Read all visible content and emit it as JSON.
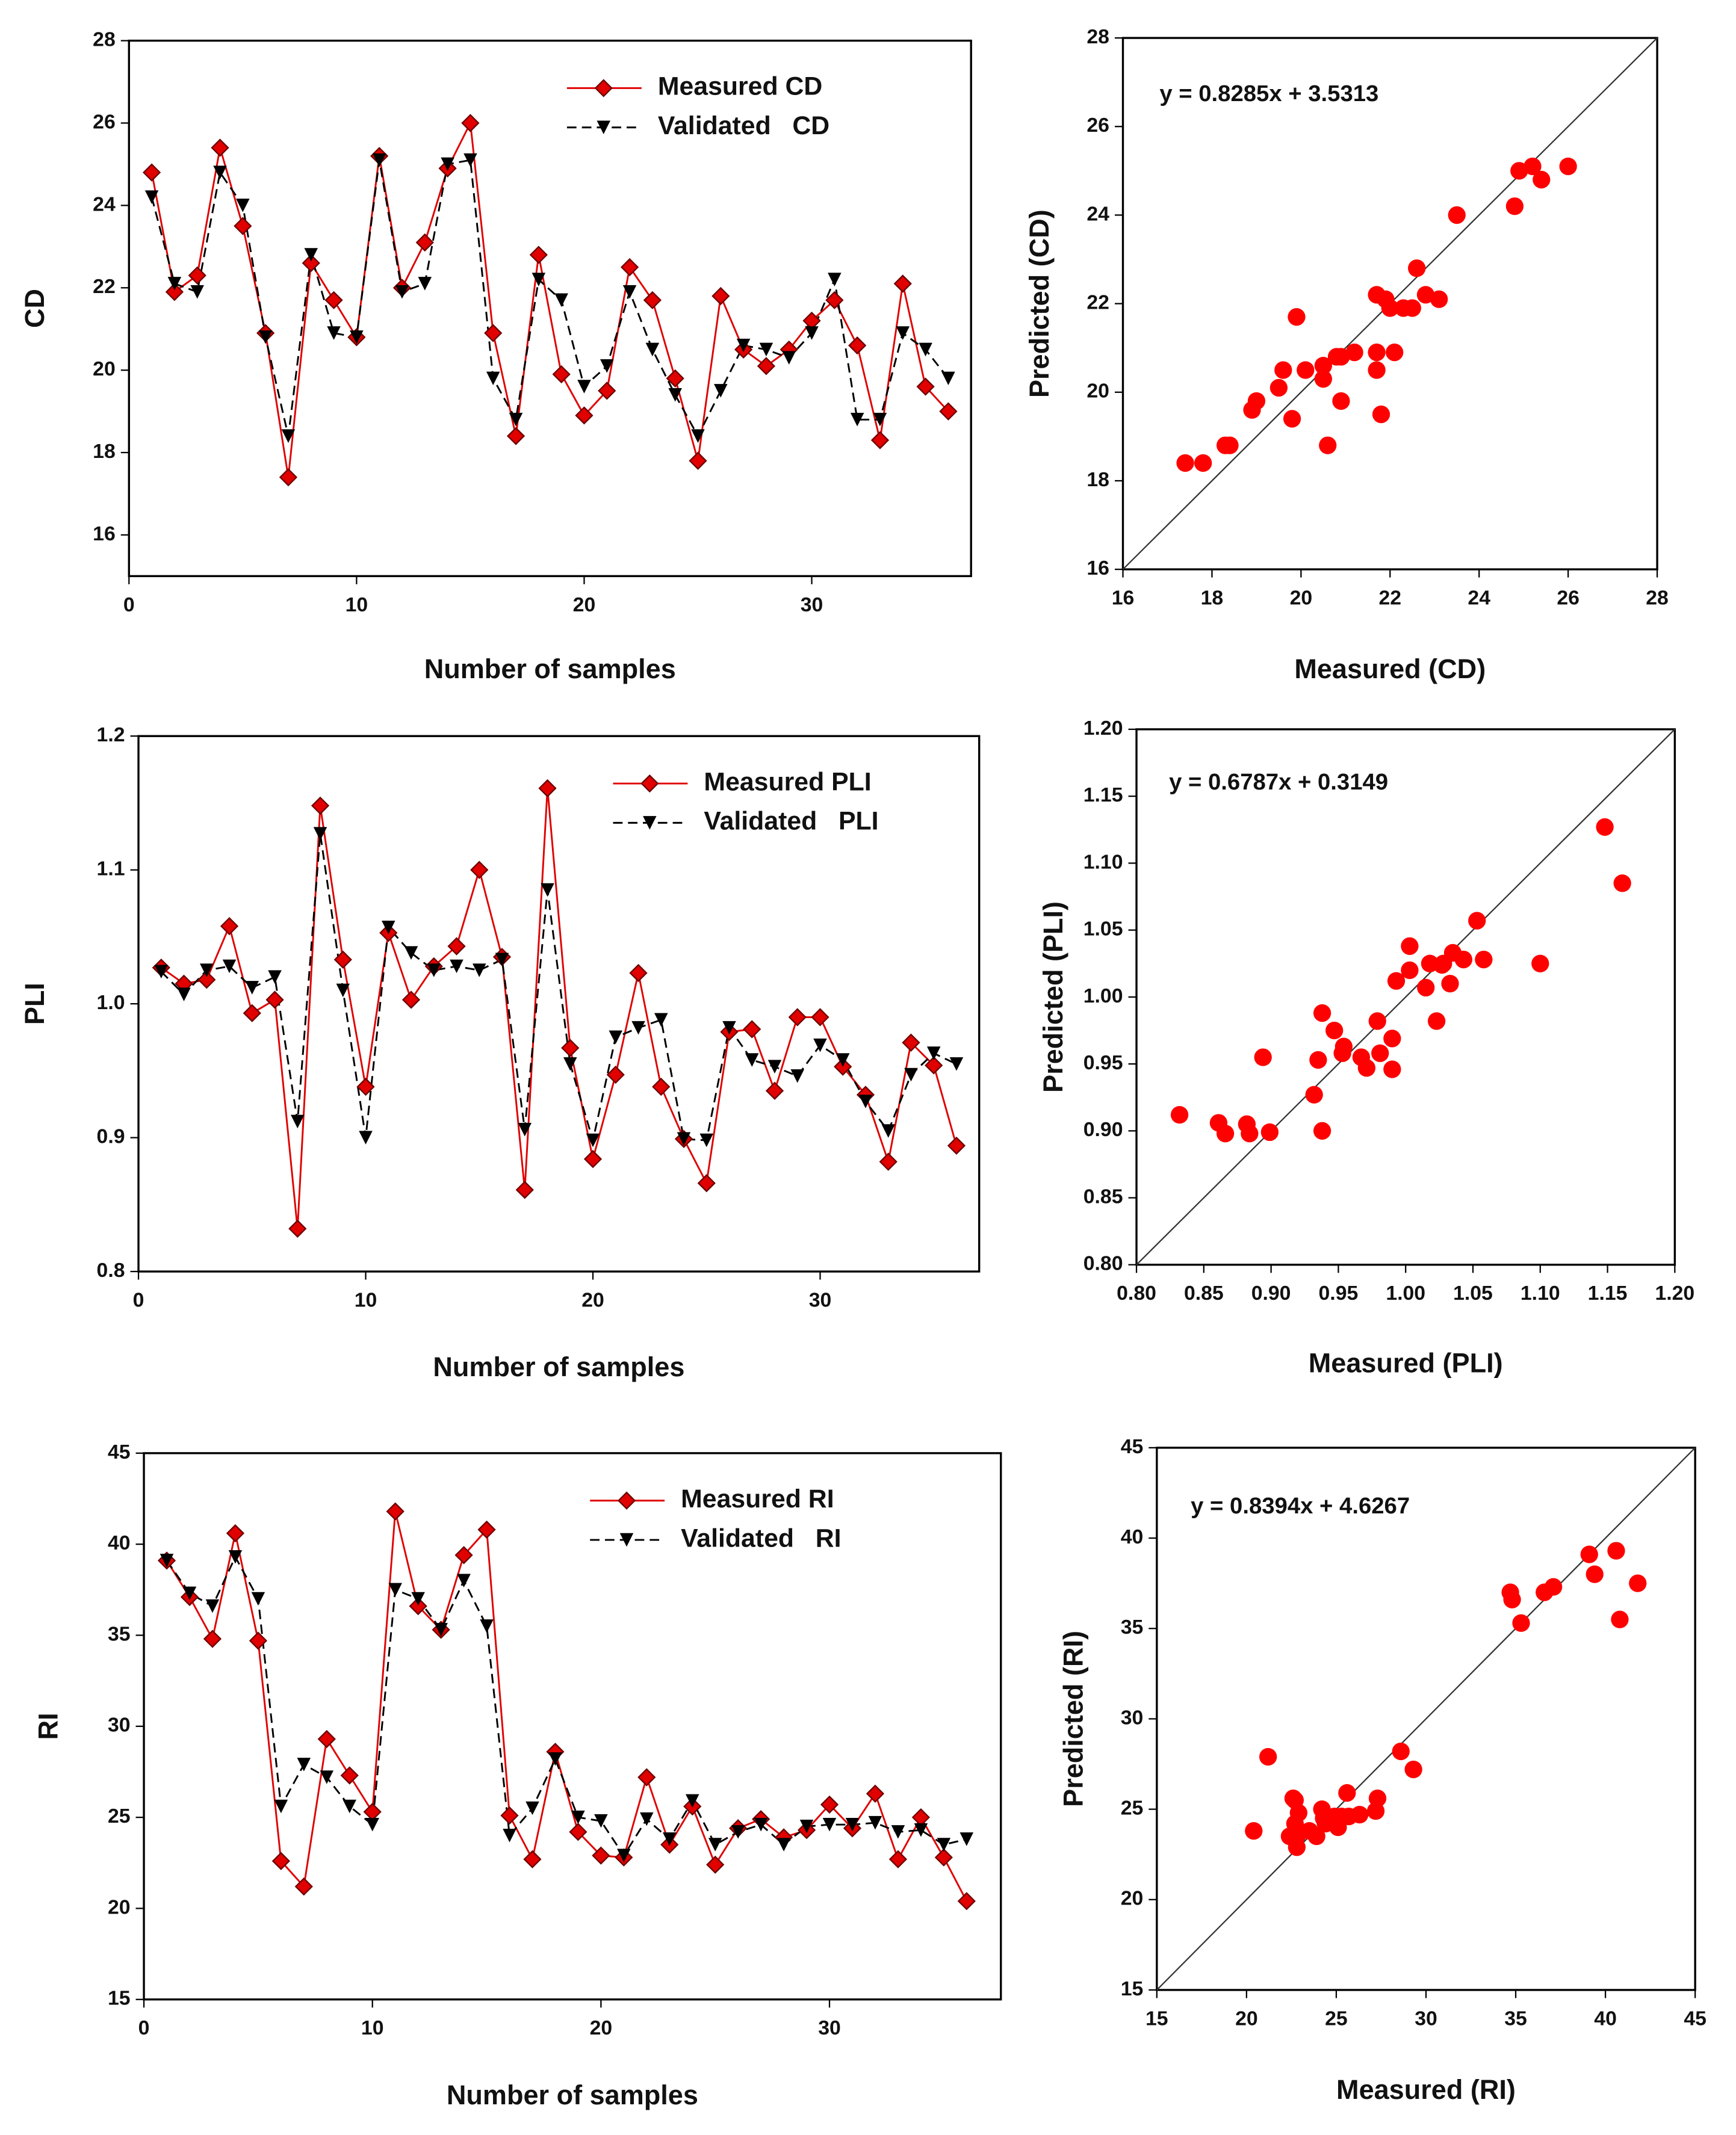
{
  "chart_data": [
    {
      "type": "line",
      "x_label": "Number of samples",
      "y_label": "CD",
      "x": [
        1,
        2,
        3,
        4,
        5,
        6,
        7,
        8,
        9,
        10,
        11,
        12,
        13,
        14,
        15,
        16,
        17,
        18,
        19,
        20,
        21,
        22,
        23,
        24,
        25,
        26,
        27,
        28,
        29,
        30,
        31,
        32,
        33,
        34,
        35,
        36
      ],
      "xlim": [
        0,
        37
      ],
      "xticks": [
        0,
        10,
        20,
        30
      ],
      "ylim": [
        15,
        28
      ],
      "yticks": [
        16,
        18,
        20,
        22,
        24,
        26,
        28
      ],
      "legend": "upper center",
      "series": [
        {
          "name": "Measured CD",
          "color": "#e00000",
          "marker": "diamond",
          "dash": false,
          "values": [
            24.8,
            21.9,
            22.3,
            25.4,
            23.5,
            20.9,
            17.4,
            22.6,
            21.7,
            20.8,
            25.2,
            22.0,
            23.1,
            24.9,
            26.0,
            20.9,
            18.4,
            22.8,
            19.9,
            18.9,
            19.5,
            22.5,
            21.7,
            19.8,
            17.8,
            21.8,
            20.5,
            20.1,
            20.5,
            21.2,
            21.7,
            20.6,
            18.3,
            22.1,
            19.6,
            19.0
          ]
        },
        {
          "name": "Validated   CD",
          "color": "#000000",
          "marker": "triangle-down",
          "dash": true,
          "values": [
            24.2,
            22.1,
            21.9,
            24.8,
            24.0,
            20.8,
            18.4,
            22.8,
            20.9,
            20.8,
            25.1,
            21.9,
            22.1,
            25.0,
            25.1,
            19.8,
            18.8,
            22.2,
            21.7,
            19.6,
            20.1,
            21.9,
            20.5,
            19.4,
            18.4,
            19.5,
            20.6,
            20.5,
            20.3,
            20.9,
            22.2,
            18.8,
            18.8,
            20.9,
            20.5,
            19.8
          ]
        }
      ]
    },
    {
      "type": "scatter",
      "x_label": "Measured (CD)",
      "y_label": "Predicted (CD)",
      "annotation": "y = 0.8285x + 3.5313",
      "xlim": [
        16,
        28
      ],
      "xticks": [
        16,
        18,
        20,
        22,
        24,
        26,
        28
      ],
      "ylim": [
        16,
        28
      ],
      "yticks": [
        16,
        18,
        20,
        22,
        24,
        26,
        28
      ],
      "series": [
        {
          "color": "#ff0000",
          "x": [
            24.8,
            21.9,
            22.3,
            25.4,
            23.5,
            20.9,
            17.4,
            22.6,
            21.7,
            20.8,
            25.2,
            22.0,
            23.1,
            24.9,
            26.0,
            20.9,
            18.4,
            22.8,
            19.9,
            18.9,
            19.5,
            22.5,
            21.7,
            19.8,
            17.8,
            21.8,
            20.5,
            20.1,
            20.5,
            21.2,
            21.7,
            20.6,
            18.3,
            22.1,
            19.6,
            19.0
          ],
          "values": [
            24.2,
            22.1,
            21.9,
            24.8,
            24.0,
            20.8,
            18.4,
            22.8,
            20.9,
            20.8,
            25.1,
            21.9,
            22.1,
            25.0,
            25.1,
            19.8,
            18.8,
            22.2,
            21.7,
            19.6,
            20.1,
            21.9,
            20.5,
            19.4,
            18.4,
            19.5,
            20.6,
            20.5,
            20.3,
            20.9,
            22.2,
            18.8,
            18.8,
            20.9,
            20.5,
            19.8
          ]
        }
      ]
    },
    {
      "type": "line",
      "x_label": "Number of samples",
      "y_label": "PLI",
      "x": [
        1,
        2,
        3,
        4,
        5,
        6,
        7,
        8,
        9,
        10,
        11,
        12,
        13,
        14,
        15,
        16,
        17,
        18,
        19,
        20,
        21,
        22,
        23,
        24,
        25,
        26,
        27,
        28,
        29,
        30,
        31,
        32,
        33,
        34,
        35,
        36
      ],
      "xlim": [
        0,
        37
      ],
      "xticks": [
        0,
        10,
        20,
        30
      ],
      "ylim": [
        0.8,
        1.2
      ],
      "yticks": [
        0.8,
        0.9,
        {
          "value": 1.0,
          "label": "1.0"
        },
        1.1,
        1.2
      ],
      "legend": "upper center",
      "series": [
        {
          "name": "Measured PLI",
          "color": "#e00000",
          "marker": "diamond",
          "dash": false,
          "values": [
            1.027,
            1.015,
            1.018,
            1.058,
            0.993,
            1.003,
            0.832,
            1.148,
            1.033,
            0.938,
            1.053,
            1.003,
            1.028,
            1.043,
            1.1,
            1.035,
            0.861,
            1.161,
            0.967,
            0.884,
            0.947,
            1.023,
            0.938,
            0.899,
            0.866,
            0.979,
            0.981,
            0.935,
            0.99,
            0.99,
            0.953,
            0.932,
            0.882,
            0.971,
            0.954,
            0.894
          ]
        },
        {
          "name": "Validated   PLI",
          "color": "#000000",
          "marker": "triangle-down",
          "dash": true,
          "values": [
            1.024,
            1.007,
            1.025,
            1.028,
            1.012,
            1.02,
            0.912,
            1.127,
            1.01,
            0.9,
            1.057,
            1.038,
            1.025,
            1.028,
            1.025,
            1.033,
            0.906,
            1.085,
            0.955,
            0.898,
            0.975,
            0.982,
            0.988,
            0.899,
            0.898,
            0.982,
            0.958,
            0.953,
            0.946,
            0.969,
            0.958,
            0.927,
            0.905,
            0.947,
            0.963,
            0.955
          ]
        }
      ]
    },
    {
      "type": "scatter",
      "x_label": "Measured (PLI)",
      "y_label": "Predicted (PLI)",
      "annotation": "y = 0.6787x + 0.3149",
      "xlim": [
        0.8,
        1.2
      ],
      "xticks": [
        {
          "value": 0.8,
          "label": "0.80"
        },
        0.85,
        {
          "value": 0.9,
          "label": "0.90"
        },
        0.95,
        {
          "value": 1.0,
          "label": "1.00"
        },
        1.05,
        {
          "value": 1.1,
          "label": "1.10"
        },
        1.15,
        {
          "value": 1.2,
          "label": "1.20"
        }
      ],
      "ylim": [
        0.8,
        1.2
      ],
      "yticks": [
        {
          "value": 0.8,
          "label": "0.80"
        },
        0.85,
        {
          "value": 0.9,
          "label": "0.90"
        },
        0.95,
        {
          "value": 1.0,
          "label": "1.00"
        },
        1.05,
        {
          "value": 1.1,
          "label": "1.10"
        },
        1.15,
        {
          "value": 1.2,
          "label": "1.20"
        }
      ],
      "series": [
        {
          "color": "#ff0000",
          "x": [
            1.027,
            1.015,
            1.018,
            1.058,
            0.993,
            1.003,
            0.832,
            1.148,
            1.033,
            0.938,
            1.053,
            1.003,
            1.028,
            1.043,
            1.1,
            1.035,
            0.861,
            1.161,
            0.967,
            0.884,
            0.947,
            1.023,
            0.938,
            0.899,
            0.866,
            0.979,
            0.981,
            0.935,
            0.99,
            0.99,
            0.953,
            0.932,
            0.882,
            0.971,
            0.954,
            0.894
          ],
          "values": [
            1.024,
            1.007,
            1.025,
            1.028,
            1.012,
            1.02,
            0.912,
            1.127,
            1.01,
            0.9,
            1.057,
            1.038,
            1.025,
            1.028,
            1.025,
            1.033,
            0.906,
            1.085,
            0.955,
            0.898,
            0.975,
            0.982,
            0.988,
            0.899,
            0.898,
            0.982,
            0.958,
            0.953,
            0.946,
            0.969,
            0.958,
            0.927,
            0.905,
            0.947,
            0.963,
            0.955
          ]
        }
      ]
    },
    {
      "type": "line",
      "x_label": "Number of samples",
      "y_label": "RI",
      "x": [
        1,
        2,
        3,
        4,
        5,
        6,
        7,
        8,
        9,
        10,
        11,
        12,
        13,
        14,
        15,
        16,
        17,
        18,
        19,
        20,
        21,
        22,
        23,
        24,
        25,
        26,
        27,
        28,
        29,
        30,
        31,
        32,
        33,
        34,
        35,
        36
      ],
      "xlim": [
        0,
        37.5
      ],
      "xticks": [
        0,
        10,
        20,
        30
      ],
      "ylim": [
        15,
        45
      ],
      "yticks": [
        15,
        20,
        25,
        30,
        35,
        40,
        45
      ],
      "legend": "upper center",
      "series": [
        {
          "name": "Measured RI",
          "color": "#e00000",
          "marker": "diamond",
          "dash": false,
          "values": [
            39.1,
            37.1,
            34.8,
            40.6,
            34.7,
            22.6,
            21.2,
            29.3,
            27.3,
            25.3,
            41.8,
            36.6,
            35.3,
            39.4,
            40.8,
            25.1,
            22.7,
            28.6,
            24.2,
            22.9,
            22.8,
            27.2,
            23.5,
            25.6,
            22.4,
            24.4,
            24.9,
            23.9,
            24.3,
            25.7,
            24.4,
            26.3,
            22.7,
            25.0,
            22.8,
            20.4
          ]
        },
        {
          "name": "Validated   RI",
          "color": "#000000",
          "marker": "triangle-down",
          "dash": true,
          "values": [
            39.1,
            37.3,
            36.6,
            39.3,
            37.0,
            25.6,
            27.9,
            27.2,
            25.6,
            24.6,
            37.5,
            37.0,
            35.3,
            38.0,
            35.5,
            24.0,
            25.5,
            28.2,
            25.0,
            24.8,
            22.9,
            24.9,
            23.8,
            25.9,
            23.5,
            24.2,
            24.6,
            23.5,
            24.5,
            24.6,
            24.6,
            24.7,
            24.2,
            24.3,
            23.5,
            23.8
          ]
        }
      ]
    },
    {
      "type": "scatter",
      "x_label": "Measured (RI)",
      "y_label": "Predicted (RI)",
      "annotation": "y = 0.8394x + 4.6267",
      "xlim": [
        15,
        45
      ],
      "xticks": [
        15,
        20,
        25,
        30,
        35,
        40,
        45
      ],
      "ylim": [
        15,
        45
      ],
      "yticks": [
        15,
        20,
        25,
        30,
        35,
        40,
        45
      ],
      "series": [
        {
          "color": "#ff0000",
          "x": [
            39.1,
            37.1,
            34.8,
            40.6,
            34.7,
            22.6,
            21.2,
            29.3,
            27.3,
            25.3,
            41.8,
            36.6,
            35.3,
            39.4,
            40.8,
            25.1,
            22.7,
            28.6,
            24.2,
            22.9,
            22.8,
            27.2,
            23.5,
            25.6,
            22.4,
            24.4,
            24.9,
            23.9,
            24.3,
            25.7,
            24.4,
            26.3,
            22.7,
            25.0,
            22.8,
            20.4
          ],
          "values": [
            39.1,
            37.3,
            36.6,
            39.3,
            37.0,
            25.6,
            27.9,
            27.2,
            25.6,
            24.6,
            37.5,
            37.0,
            35.3,
            38.0,
            35.5,
            24.0,
            25.5,
            28.2,
            25.0,
            24.8,
            22.9,
            24.9,
            23.8,
            25.9,
            23.5,
            24.2,
            24.6,
            23.5,
            24.5,
            24.6,
            24.6,
            24.7,
            24.2,
            24.3,
            23.5,
            23.8
          ]
        }
      ]
    }
  ]
}
